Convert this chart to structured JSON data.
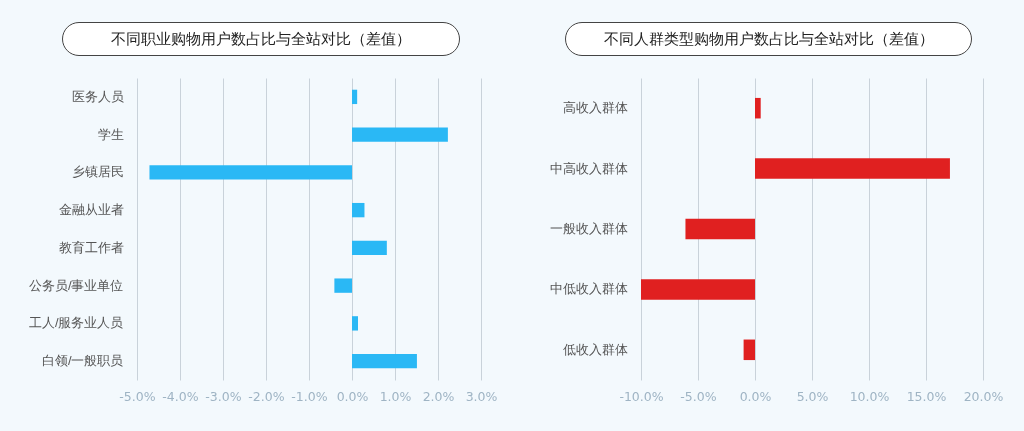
{
  "chart_data": [
    {
      "type": "bar",
      "orientation": "horizontal",
      "title": "不同职业购物用户数占比与全站对比（差值）",
      "categories": [
        "医务人员",
        "学生",
        "乡镇居民",
        "金融从业者",
        "教育工作者",
        "公务员/事业单位",
        "工人/服务业人员",
        "白领/一般职员"
      ],
      "values": [
        0.12,
        2.23,
        -4.71,
        0.29,
        0.81,
        -0.41,
        0.14,
        1.51
      ],
      "color": "#2ab8f5",
      "xlim": [
        -5,
        3
      ],
      "xticks": [
        {
          "value": -5,
          "label": "-5.0%"
        },
        {
          "value": -4,
          "label": "-4.0%"
        },
        {
          "value": -3,
          "label": "-3.0%"
        },
        {
          "value": -2,
          "label": "-2.0%"
        },
        {
          "value": -1,
          "label": "-1.0%"
        },
        {
          "value": 0,
          "label": "0.0%"
        },
        {
          "value": 1,
          "label": "1.0%"
        },
        {
          "value": 2,
          "label": "2.0%"
        },
        {
          "value": 3,
          "label": "3.0%"
        }
      ],
      "grid": "x"
    },
    {
      "type": "bar",
      "orientation": "horizontal",
      "title": "不同人群类型购物用户数占比与全站对比（差值）",
      "categories": [
        "高收入群体",
        "中高收入群体",
        "一般收入群体",
        "中低收入群体",
        "低收入群体"
      ],
      "values": [
        0.5,
        17.1,
        -6.1,
        -10.0,
        -1.0
      ],
      "color": "#e02020",
      "xlim": [
        -10,
        20
      ],
      "xticks": [
        {
          "value": -10,
          "label": "-10.0%"
        },
        {
          "value": -5,
          "label": "-5.0%"
        },
        {
          "value": 0,
          "label": "0.0%"
        },
        {
          "value": 5,
          "label": "5.0%"
        },
        {
          "value": 10,
          "label": "10.0%"
        },
        {
          "value": 15,
          "label": "15.0%"
        },
        {
          "value": 20,
          "label": "20.0%"
        }
      ],
      "grid": "x"
    }
  ]
}
